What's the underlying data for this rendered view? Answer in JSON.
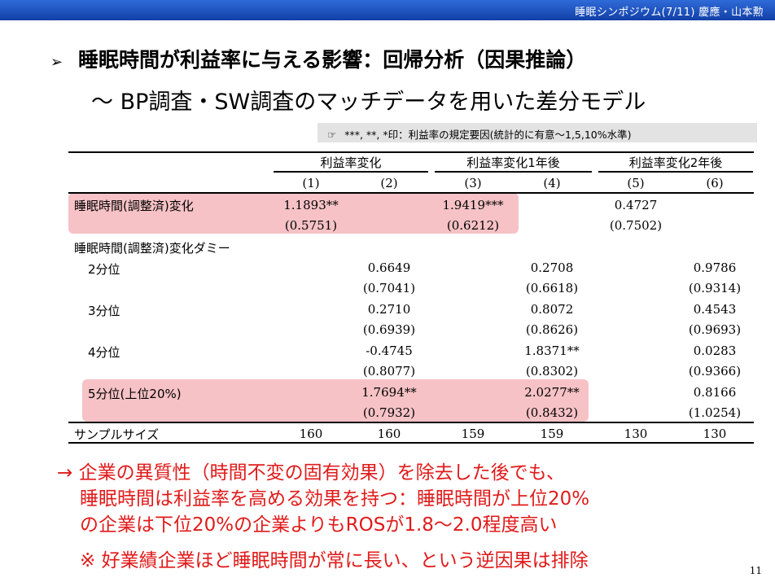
{
  "header": {
    "text": "睡眠シンポジウム(7/11)  慶應・山本勲"
  },
  "slide": {
    "bullet": "➢",
    "title": "睡眠時間が利益率に与える影響：回帰分析（因果推論）",
    "subtitle": "～ BP調査・SW調査のマッチデータを用いた差分モデル",
    "note_icon": "☞",
    "note": "***, **, *印：利益率の規定要因(統計的に有意～1,5,10%水準)"
  },
  "table": {
    "group_headers": [
      "利益率変化",
      "利益率変化1年後",
      "利益率変化2年後"
    ],
    "col_numbers": [
      "(1)",
      "(2)",
      "(3)",
      "(4)",
      "(5)",
      "(6)"
    ],
    "row1": {
      "label": "睡眠時間(調整済)変化",
      "c1": "1.1893**",
      "c1_se": "(0.5751)",
      "c3": "1.9419***",
      "c3_se": "(0.6212)",
      "c5": "0.4727",
      "c5_se": "(0.7502)"
    },
    "dummy_label": "睡眠時間(調整済)変化ダミー",
    "q2": {
      "label": "2分位",
      "c2": "0.6649",
      "c2_se": "(0.7041)",
      "c4": "0.2708",
      "c4_se": "(0.6618)",
      "c6": "0.9786",
      "c6_se": "(0.9314)"
    },
    "q3": {
      "label": "3分位",
      "c2": "0.2710",
      "c2_se": "(0.6939)",
      "c4": "0.8072",
      "c4_se": "(0.8626)",
      "c6": "0.4543",
      "c6_se": "(0.9693)"
    },
    "q4": {
      "label": "4分位",
      "c2": "-0.4745",
      "c2_se": "(0.8077)",
      "c4": "1.8371**",
      "c4_se": "(0.8302)",
      "c6": "0.0283",
      "c6_se": "(0.9366)"
    },
    "q5": {
      "label": "5分位(上位20%)",
      "c2": "1.7694**",
      "c2_se": "(0.7932)",
      "c4": "2.0277**",
      "c4_se": "(0.8432)",
      "c6": "0.8166",
      "c6_se": "(1.0254)"
    },
    "sample": {
      "label": "サンプルサイズ",
      "values": [
        "160",
        "160",
        "159",
        "159",
        "130",
        "130"
      ]
    }
  },
  "conclusion": {
    "line1": "→ 企業の異質性（時間不変の固有効果）を除去した後でも、",
    "line2": "睡眠時間は利益率を高める効果を持つ：睡眠時間が上位20%",
    "line3": "の企業は下位20%の企業よりもROSが1.8～2.0程度高い",
    "line4": "※ 好業績企業ほど睡眠時間が常に長い、という逆因果は排除"
  },
  "page_number": "11",
  "colors": {
    "header_bar": "#1a4cc0",
    "highlight": "#f6c2c6",
    "conclusion_text": "#e01b1b",
    "note_box": "#e3e3e3"
  }
}
